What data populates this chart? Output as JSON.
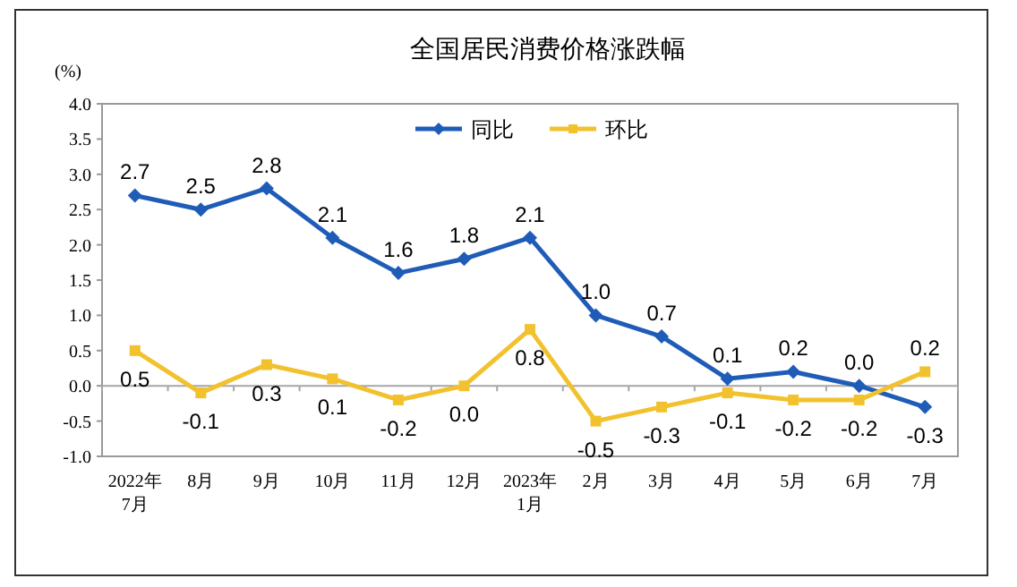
{
  "chart_data": {
    "type": "line",
    "title": "全国居民消费价格涨跌幅",
    "ylabel": "(%)",
    "categories": [
      "2022年\n7月",
      "8月",
      "9月",
      "10月",
      "11月",
      "12月",
      "2023年\n1月",
      "2月",
      "3月",
      "4月",
      "5月",
      "6月",
      "7月"
    ],
    "series": [
      {
        "name": "同比",
        "color": "#1f5cb8",
        "marker": "diamond",
        "values": [
          2.7,
          2.5,
          2.8,
          2.1,
          1.6,
          1.8,
          2.1,
          1.0,
          0.7,
          0.1,
          0.2,
          0.0,
          -0.3
        ],
        "value_labels": [
          "2.7",
          "2.5",
          "2.8",
          "2.1",
          "1.6",
          "1.8",
          "2.1",
          "1.0",
          "0.7",
          "0.1",
          "0.2",
          "0.0",
          "-0.3"
        ]
      },
      {
        "name": "环比",
        "color": "#f2c12e",
        "marker": "square",
        "values": [
          0.5,
          -0.1,
          0.3,
          0.1,
          -0.2,
          0.0,
          0.8,
          -0.5,
          -0.3,
          -0.1,
          -0.2,
          -0.2,
          0.2
        ],
        "value_labels": [
          "0.5",
          "-0.1",
          "0.3",
          "0.1",
          "-0.2",
          "0.0",
          "0.8",
          "-0.5",
          "-0.3",
          "-0.1",
          "-0.2",
          "-0.2",
          "0.2"
        ]
      }
    ],
    "ylim": [
      -1.0,
      4.0
    ],
    "yticks": [
      {
        "value": -1,
        "label": "-1.0"
      },
      {
        "value": -0.5,
        "label": "-0.5"
      },
      {
        "value": 0,
        "label": "0.0"
      },
      {
        "value": 0.5,
        "label": "0.5"
      },
      {
        "value": 1,
        "label": "1.0"
      },
      {
        "value": 1.5,
        "label": "1.5"
      },
      {
        "value": 2,
        "label": "2.0"
      },
      {
        "value": 2.5,
        "label": "2.5"
      },
      {
        "value": 3,
        "label": "3.0"
      },
      {
        "value": 3.5,
        "label": "3.5"
      },
      {
        "value": 4,
        "label": "4.0"
      }
    ],
    "ref_lines": [
      {
        "axis": "y",
        "value": 0,
        "color": "#a6a6a6"
      }
    ],
    "grid": false,
    "legend": "top",
    "line_style": "solid"
  }
}
